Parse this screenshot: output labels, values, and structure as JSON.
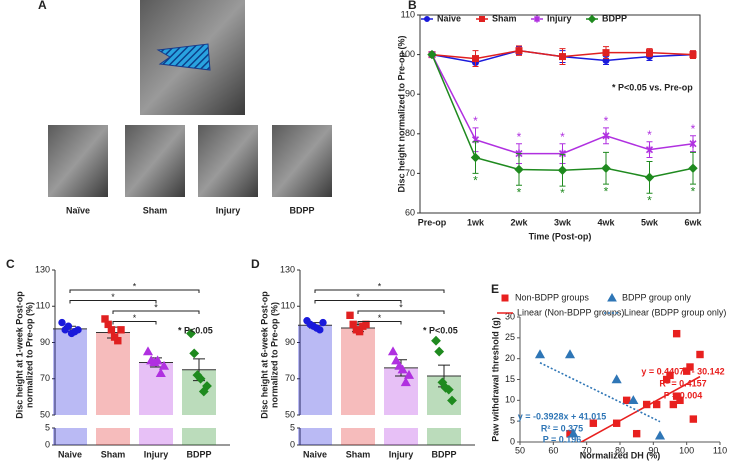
{
  "chart_data": [
    {
      "type": "image",
      "panel": "A",
      "labels": [
        "Naïve",
        "Sham",
        "Injury",
        "BDPP"
      ]
    },
    {
      "type": "line",
      "panel": "B",
      "ylabel": "Disc height normalized to Pre-op (%)",
      "xlabel": "Time (Post-op)",
      "categories": [
        "Pre-op",
        "1wk",
        "2wk",
        "3wk",
        "4wk",
        "5wk",
        "6wk"
      ],
      "ylim": [
        60,
        110
      ],
      "yticks": [
        60,
        70,
        80,
        90,
        100,
        110
      ],
      "annotation": "* P<0.05 vs. Pre-op",
      "series": [
        {
          "name": "Naive",
          "color": "#1a1adb",
          "marker": "circle",
          "values": [
            100,
            98,
            101,
            99.5,
            98.5,
            99.5,
            100
          ],
          "errors": [
            0,
            1,
            1,
            1.5,
            1,
            1,
            0.8
          ]
        },
        {
          "name": "Sham",
          "color": "#e02020",
          "marker": "square",
          "values": [
            100,
            99,
            101,
            99.5,
            100.5,
            100.5,
            100
          ],
          "errors": [
            0,
            2,
            1.2,
            2,
            1.5,
            1,
            1
          ]
        },
        {
          "name": "Injury",
          "color": "#b030e0",
          "marker": "cross",
          "values": [
            100,
            78.5,
            75,
            75,
            79.5,
            76,
            77.5
          ],
          "errors": [
            0,
            3,
            2.5,
            2.5,
            2,
            2,
            2
          ],
          "sig": [
            null,
            "*",
            "*",
            "*",
            "*",
            "*",
            "*"
          ]
        },
        {
          "name": "BDPP",
          "color": "#1f8a1f",
          "marker": "diamond",
          "values": [
            100,
            74,
            71,
            70.8,
            71.3,
            69,
            71.3
          ],
          "errors": [
            0,
            4,
            4,
            4,
            4,
            4,
            4
          ],
          "sig": [
            null,
            "*",
            "*",
            "*",
            "*",
            "*",
            "*"
          ]
        }
      ]
    },
    {
      "type": "bar",
      "panel": "C",
      "ylabel": [
        "Disc height at 1-week Post-op",
        "normalized to Pre-op (%)"
      ],
      "categories": [
        "Naive",
        "Sham",
        "Injury",
        "BDPP"
      ],
      "colors": [
        "#1a1adb",
        "#e02020",
        "#b030e0",
        "#1f8a1f"
      ],
      "values": [
        97.5,
        95.5,
        79,
        75
      ],
      "errors": [
        1.5,
        3,
        2.5,
        6
      ],
      "points": [
        [
          101,
          97,
          99,
          95,
          96,
          97
        ],
        [
          103,
          100,
          97,
          93,
          91,
          97
        ],
        [
          85,
          80,
          79,
          80,
          73,
          77
        ],
        [
          95,
          84,
          72,
          70,
          63,
          66
        ]
      ],
      "ylim": [
        50,
        130
      ],
      "yticks": [
        50,
        70,
        90,
        110,
        130
      ],
      "ylim_lower": [
        0,
        5
      ],
      "yticks_lower": [
        0,
        5
      ],
      "brackets": [
        {
          "groups": [
            "Naive",
            "BDPP"
          ],
          "label": "*"
        },
        {
          "groups": [
            "Naive",
            "Injury"
          ],
          "label": "*"
        },
        {
          "groups": [
            "Sham",
            "BDPP"
          ],
          "label": "*"
        },
        {
          "groups": [
            "Sham",
            "Injury"
          ],
          "label": "*"
        }
      ],
      "annotation": "* P<0.05"
    },
    {
      "type": "bar",
      "panel": "D",
      "ylabel": [
        "Disc height at 6-week Post-op",
        "normalized to Pre-op (%)"
      ],
      "categories": [
        "Naive",
        "Sham",
        "Injury",
        "BDPP"
      ],
      "colors": [
        "#1a1adb",
        "#e02020",
        "#b030e0",
        "#1f8a1f"
      ],
      "values": [
        99.5,
        98,
        76,
        71.5
      ],
      "errors": [
        1.5,
        2,
        4.5,
        6
      ],
      "points": [
        [
          102,
          100,
          99,
          98,
          97,
          101
        ],
        [
          105,
          100,
          97,
          96,
          99,
          100
        ],
        [
          85,
          80,
          77,
          75,
          68,
          72
        ],
        [
          91,
          85,
          68,
          65,
          64,
          58
        ]
      ],
      "ylim": [
        50,
        130
      ],
      "yticks": [
        50,
        70,
        90,
        110,
        130
      ],
      "ylim_lower": [
        0,
        5
      ],
      "yticks_lower": [
        0,
        5
      ],
      "brackets": [
        {
          "groups": [
            "Naive",
            "BDPP"
          ],
          "label": "*"
        },
        {
          "groups": [
            "Naive",
            "Injury"
          ],
          "label": "*"
        },
        {
          "groups": [
            "Sham",
            "BDPP"
          ],
          "label": "*"
        },
        {
          "groups": [
            "Sham",
            "Injury"
          ],
          "label": "*"
        }
      ],
      "annotation": "* P<0.05"
    },
    {
      "type": "scatter",
      "panel": "E",
      "xlabel": "Normalized DH (%)",
      "ylabel": "Paw withdrawal threshold  (g)",
      "xlim": [
        50,
        110
      ],
      "xticks": [
        50,
        60,
        70,
        80,
        90,
        100,
        110
      ],
      "ylim": [
        0,
        30
      ],
      "yticks": [
        0,
        5,
        10,
        15,
        20,
        25,
        30
      ],
      "series": [
        {
          "name": "Non-BDPP groups",
          "color": "#e8201f",
          "marker": "square",
          "x": [
            65,
            72,
            79,
            82,
            85,
            91,
            94,
            95,
            96,
            97,
            97,
            98,
            100,
            101,
            102,
            104,
            88
          ],
          "values": [
            2,
            4.5,
            4.5,
            10,
            2,
            9,
            15,
            16,
            9,
            26,
            11,
            10,
            17,
            18,
            5.5,
            21,
            9
          ]
        },
        {
          "name": "BDPP group only",
          "color": "#2f76b6",
          "marker": "triangle",
          "x": [
            56,
            65,
            66,
            79,
            84,
            92
          ],
          "values": [
            21,
            21,
            2,
            15,
            10,
            1.5
          ]
        }
      ],
      "fits": [
        {
          "name": "Linear (Non-BDPP groups)",
          "color": "#e8201f",
          "dashed": false,
          "slope": 0.4407,
          "intercept": -30.142,
          "labels": [
            "y = 0.4407x - 30.142",
            "R² = 0.4157",
            "P = 0.004"
          ]
        },
        {
          "name": "Linear (BDPP group only)",
          "color": "#2f76b6",
          "dashed": true,
          "slope": -0.3928,
          "intercept": 41.015,
          "labels": [
            "y = -0.3928x + 41.015",
            "R² = 0.375",
            "P = 0.196"
          ]
        }
      ]
    }
  ]
}
